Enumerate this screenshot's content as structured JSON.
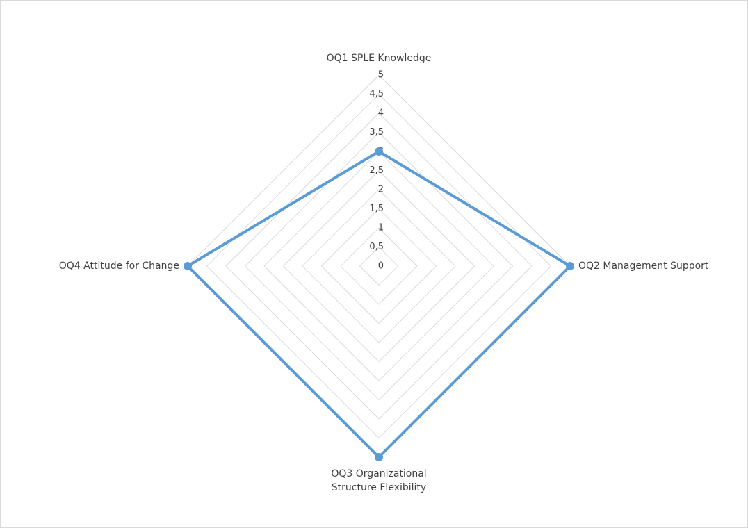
{
  "chart_data": {
    "type": "radar",
    "categories": [
      "OQ1 SPLE Knowledge",
      "OQ2 Management Support",
      "OQ3 Organizational Structure Flexibility",
      "OQ4 Attitude for Change"
    ],
    "values": [
      3,
      5,
      5,
      5
    ],
    "color": "#5b9bd5",
    "ylim": [
      0,
      5
    ],
    "yticks": [
      0,
      {
        "value": 0.5,
        "label": "0,5"
      },
      1,
      {
        "value": 1.5,
        "label": "1,5"
      },
      2,
      {
        "value": 2.5,
        "label": "2,5"
      },
      3,
      {
        "value": 3.5,
        "label": "3,5"
      },
      4,
      {
        "value": 4.5,
        "label": "4,5"
      },
      5
    ],
    "grid": true
  }
}
